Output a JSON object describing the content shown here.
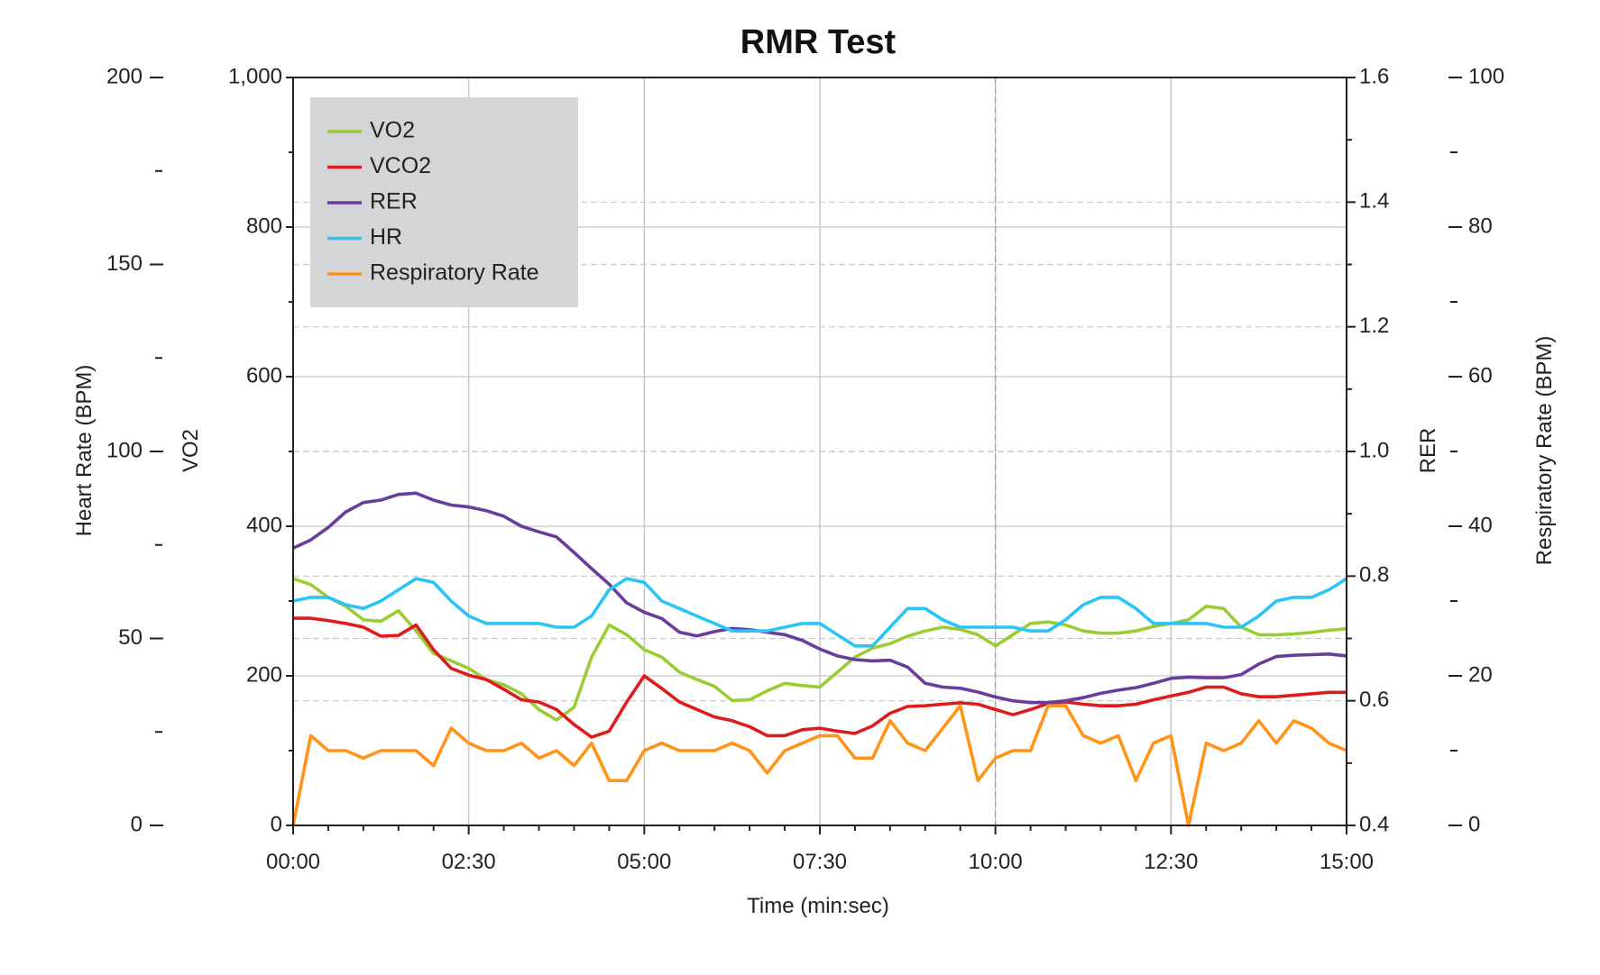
{
  "chart_data": {
    "type": "line",
    "title": "RMR Test",
    "xlabel": "Time (min:sec)",
    "x_ticks": [
      "00:00",
      "02:30",
      "05:00",
      "07:30",
      "10:00",
      "12:30",
      "15:00"
    ],
    "xlim_seconds": [
      0,
      900
    ],
    "x_seconds": [
      0,
      15,
      30,
      45,
      60,
      75,
      90,
      105,
      120,
      135,
      150,
      165,
      180,
      195,
      210,
      225,
      240,
      255,
      270,
      285,
      300,
      315,
      330,
      345,
      360,
      375,
      390,
      405,
      420,
      435,
      450,
      465,
      480,
      495,
      510,
      525,
      540,
      555,
      570,
      585,
      600,
      615,
      630,
      645,
      660,
      675,
      690,
      705,
      720,
      735,
      750,
      765,
      780,
      795,
      810,
      825,
      840,
      855,
      870,
      885,
      900
    ],
    "axes": {
      "vo2": {
        "label": "VO2",
        "ylim": [
          0,
          1000
        ],
        "ticks": [
          "0",
          "200",
          "400",
          "600",
          "800",
          "1,000"
        ],
        "tick_values": [
          0,
          200,
          400,
          600,
          800,
          1000
        ]
      },
      "hr": {
        "label": "Heart Rate (BPM)",
        "ylim": [
          0,
          200
        ],
        "ticks": [
          "0",
          "50",
          "100",
          "150",
          "200"
        ],
        "tick_values": [
          0,
          50,
          100,
          150,
          200
        ]
      },
      "rer": {
        "label": "RER",
        "ylim": [
          0.4,
          1.6
        ],
        "ticks": [
          "0.4",
          "0.6",
          "0.8",
          "1.0",
          "1.2",
          "1.4",
          "1.6"
        ],
        "tick_values": [
          0.4,
          0.6,
          0.8,
          1.0,
          1.2,
          1.4,
          1.6
        ]
      },
      "rr": {
        "label": "Respiratory Rate (BPM)",
        "ylim": [
          0,
          100
        ],
        "ticks": [
          "0",
          "20",
          "40",
          "60",
          "80",
          "100"
        ],
        "tick_values": [
          0,
          20,
          40,
          60,
          80,
          100
        ]
      }
    },
    "series": [
      {
        "name": "VO2",
        "axis": "vo2",
        "color": "#9acd32",
        "values": [
          330,
          322,
          305,
          293,
          275,
          273,
          287,
          260,
          230,
          220,
          210,
          195,
          188,
          176,
          155,
          141,
          158,
          225,
          268,
          255,
          235,
          225,
          205,
          195,
          186,
          167,
          168,
          180,
          190,
          187,
          185,
          205,
          225,
          237,
          243,
          253,
          260,
          265,
          262,
          255,
          240,
          255,
          270,
          272,
          268,
          260,
          257,
          257,
          260,
          266,
          270,
          275,
          293,
          290,
          265,
          255,
          255,
          256,
          258,
          261,
          263
        ]
      },
      {
        "name": "VCO2",
        "axis": "vo2",
        "color": "#dd1c1c",
        "values": [
          277,
          277,
          274,
          270,
          265,
          253,
          254,
          268,
          235,
          210,
          201,
          195,
          182,
          168,
          165,
          155,
          135,
          118,
          126,
          165,
          200,
          183,
          165,
          155,
          145,
          140,
          132,
          120,
          120,
          128,
          130,
          126,
          123,
          133,
          150,
          159,
          160,
          162,
          164,
          162,
          155,
          148,
          155,
          163,
          165,
          162,
          160,
          160,
          162,
          168,
          173,
          178,
          185,
          185,
          176,
          172,
          172,
          174,
          176,
          178,
          178
        ]
      },
      {
        "name": "RER",
        "axis": "rer",
        "color": "#6a3d9a",
        "values": [
          0.845,
          0.858,
          0.878,
          0.903,
          0.918,
          0.922,
          0.931,
          0.933,
          0.922,
          0.914,
          0.911,
          0.905,
          0.896,
          0.88,
          0.871,
          0.863,
          0.838,
          0.812,
          0.787,
          0.757,
          0.742,
          0.732,
          0.71,
          0.704,
          0.711,
          0.716,
          0.714,
          0.71,
          0.706,
          0.697,
          0.683,
          0.672,
          0.666,
          0.664,
          0.665,
          0.654,
          0.628,
          0.622,
          0.62,
          0.614,
          0.606,
          0.6,
          0.597,
          0.597,
          0.6,
          0.605,
          0.612,
          0.617,
          0.621,
          0.628,
          0.636,
          0.638,
          0.637,
          0.637,
          0.642,
          0.659,
          0.671,
          0.673,
          0.674,
          0.675,
          0.672
        ]
      },
      {
        "name": "HR",
        "axis": "hr",
        "color": "#29c5f6",
        "values": [
          60,
          61,
          61,
          59,
          58,
          60,
          63,
          66,
          65,
          60,
          56,
          54,
          54,
          54,
          54,
          53,
          53,
          56,
          63,
          66,
          65,
          60,
          58,
          56,
          54,
          52,
          52,
          52,
          53,
          54,
          54,
          51,
          48,
          48,
          53,
          58,
          58,
          55,
          53,
          53,
          53,
          53,
          52,
          52,
          55,
          59,
          61,
          61,
          58,
          54,
          54,
          54,
          54,
          53,
          53,
          56,
          60,
          61,
          61,
          63,
          66
        ]
      },
      {
        "name": "Respiratory Rate",
        "axis": "rr",
        "color": "#ff9418",
        "values": [
          0,
          12,
          10,
          10,
          9,
          10,
          10,
          10,
          8,
          13,
          11,
          10,
          10,
          11,
          9,
          10,
          8,
          11,
          6,
          6,
          10,
          11,
          10,
          10,
          10,
          11,
          10,
          7,
          10,
          11,
          12,
          12,
          9,
          9,
          14,
          11,
          10,
          13,
          16,
          6,
          9,
          10,
          10,
          16,
          16,
          12,
          11,
          12,
          6,
          11,
          12,
          0,
          11,
          10,
          11,
          14,
          11,
          14,
          13,
          11,
          10
        ]
      }
    ],
    "legend": {
      "position": "top-left",
      "entries": [
        "VO2",
        "VCO2",
        "RER",
        "HR",
        "Respiratory Rate"
      ]
    },
    "colors": {
      "legend_background": "#d3d5d7",
      "gridline": "#c8c8c8",
      "axis": "#222222"
    }
  }
}
